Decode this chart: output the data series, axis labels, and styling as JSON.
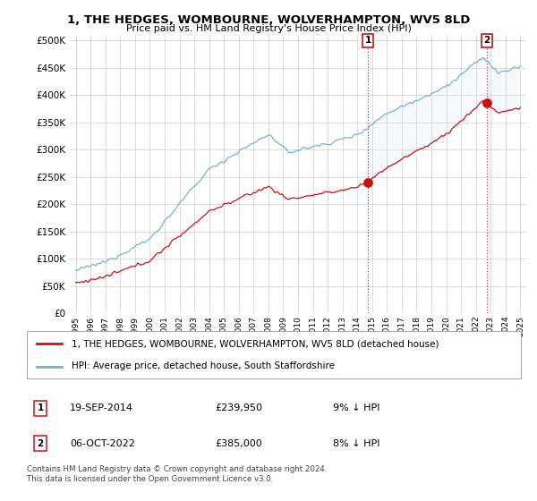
{
  "title": "1, THE HEDGES, WOMBOURNE, WOLVERHAMPTON, WV5 8LD",
  "subtitle": "Price paid vs. HM Land Registry's House Price Index (HPI)",
  "ylim": [
    0,
    500000
  ],
  "yticks": [
    0,
    50000,
    100000,
    150000,
    200000,
    250000,
    300000,
    350000,
    400000,
    450000,
    500000
  ],
  "hpi_color": "#7aaed6",
  "price_color": "#cc1111",
  "background_color": "#ffffff",
  "grid_color": "#cccccc",
  "fill_color": "#ddeeff",
  "legend_label_price": "1, THE HEDGES, WOMBOURNE, WOLVERHAMPTON, WV5 8LD (detached house)",
  "legend_label_hpi": "HPI: Average price, detached house, South Staffordshire",
  "sale1_date": "19-SEP-2014",
  "sale1_price": 239950,
  "sale1_label": "9% ↓ HPI",
  "sale2_date": "06-OCT-2022",
  "sale2_price": 385000,
  "sale2_label": "8% ↓ HPI",
  "footnote": "Contains HM Land Registry data © Crown copyright and database right 2024.\nThis data is licensed under the Open Government Licence v3.0.",
  "sale1_x": 2014.72,
  "sale2_x": 2022.75
}
